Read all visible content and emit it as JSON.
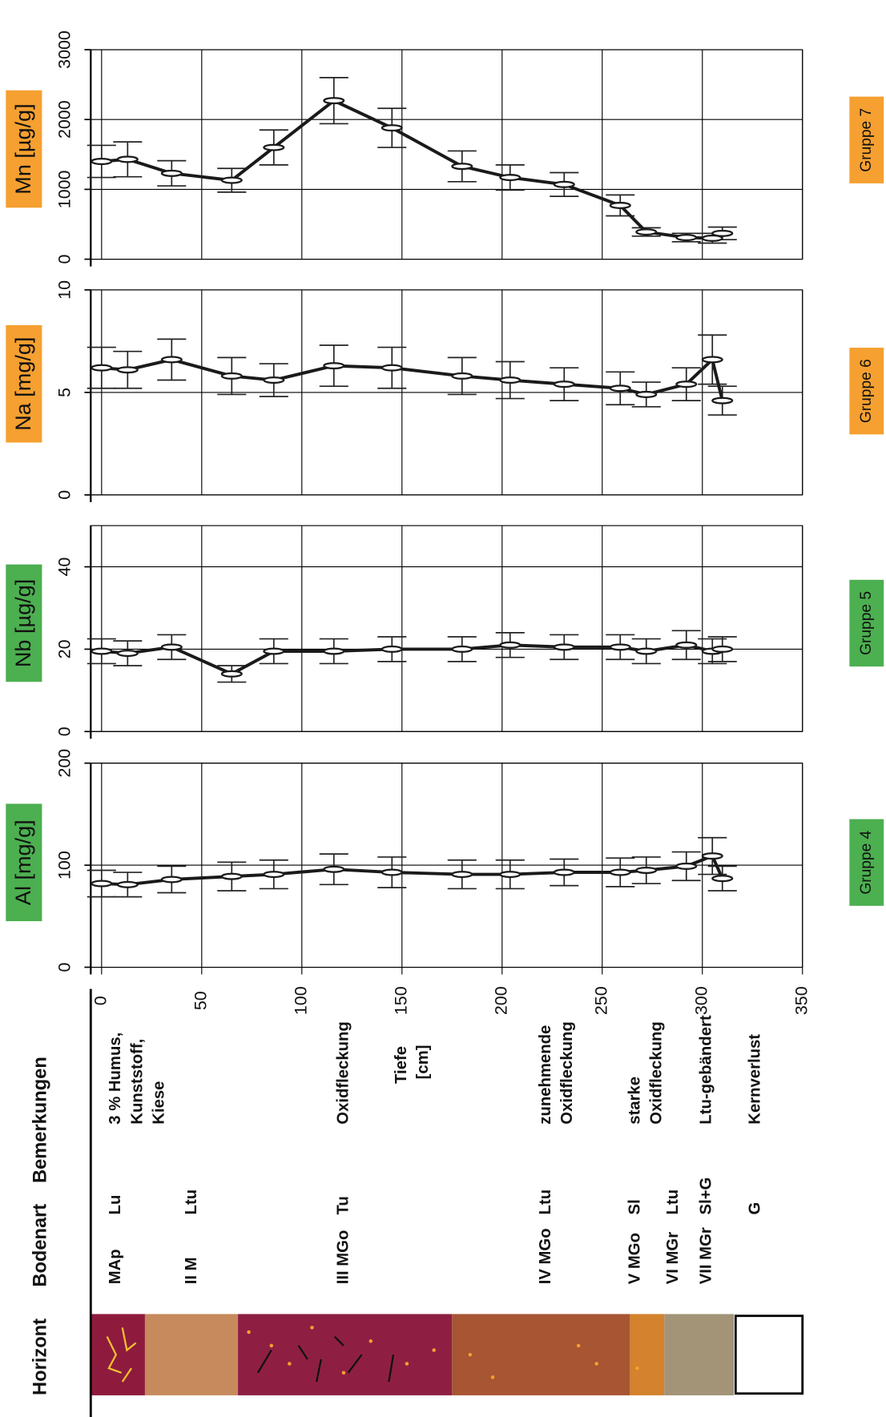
{
  "profile": {
    "headers": [
      "Horizont",
      "Bodenart",
      "Bemerkungen"
    ],
    "rows": [
      {
        "horizont": "MAp",
        "bodenart": "Lu",
        "bemerkungen": [
          "3 % Humus,",
          "Kunststoff,",
          "Kiese"
        ]
      },
      {
        "horizont": "II M",
        "bodenart": "Ltu"
      },
      {
        "horizont": "III MGo",
        "bodenart": "Tu",
        "bemerkungen": [
          "Oxidfleckung"
        ]
      },
      {
        "horizont": "IV MGo",
        "bodenart": "Ltu",
        "bemerkungen": [
          "zunehmende",
          "Oxidfleckung"
        ]
      },
      {
        "horizont": "V MGo",
        "bodenart": "Sl",
        "bemerkungen": [
          "starke",
          "Oxidfleckung"
        ]
      },
      {
        "horizont": "VI MGr",
        "bodenart": "Ltu"
      },
      {
        "horizont": "VII MGr",
        "bodenart": "Sl+G",
        "bemerkungen": [
          "Ltu-gebändert"
        ]
      },
      {
        "bodenart": "G",
        "bemerkungen": [
          "Kernverlust"
        ]
      }
    ]
  },
  "chart_data": [
    {
      "type": "line",
      "title": "Al [mg/g]",
      "title_color": "#4caf50",
      "group": "Gruppe 4",
      "group_color": "#4caf50",
      "xlabel": [
        "Tiefe",
        "[cm]"
      ],
      "xlim": [
        0,
        350
      ],
      "xticks": [
        0,
        50,
        100,
        150,
        200,
        250,
        300,
        350
      ],
      "ylim": [
        0,
        200
      ],
      "yticks": [
        0,
        100,
        200
      ],
      "grid": true,
      "x": [
        0,
        13,
        35,
        65,
        86,
        116,
        145,
        180,
        204,
        231,
        259,
        272,
        292,
        305,
        310
      ],
      "values": [
        82,
        81,
        86,
        89,
        91,
        96,
        93,
        91,
        91,
        93,
        93,
        95,
        99,
        109,
        87
      ],
      "errors": [
        13,
        12,
        13,
        14,
        14,
        15,
        15,
        14,
        14,
        13,
        14,
        13,
        14,
        18,
        12
      ],
      "color": "#1a1a1a"
    },
    {
      "type": "line",
      "title": "Nb [µg/g]",
      "title_color": "#4caf50",
      "group": "Gruppe 5",
      "group_color": "#4caf50",
      "xlim": [
        0,
        350
      ],
      "xticks": [
        0,
        50,
        100,
        150,
        200,
        250,
        300,
        350
      ],
      "ylim": [
        0,
        50
      ],
      "yticks": [
        0,
        20,
        40
      ],
      "grid": true,
      "x": [
        0,
        13,
        35,
        65,
        86,
        116,
        145,
        180,
        204,
        231,
        259,
        272,
        292,
        305,
        310
      ],
      "values": [
        19.5,
        19,
        20.5,
        14,
        19.5,
        19.5,
        20,
        20,
        21,
        20.5,
        20.5,
        19.5,
        21,
        19.5,
        20
      ],
      "errors": [
        3,
        3,
        3,
        2,
        3,
        3,
        3,
        3,
        3,
        3,
        3,
        3,
        3.5,
        3,
        3
      ],
      "color": "#1a1a1a"
    },
    {
      "type": "line",
      "title": "Na [mg/g]",
      "title_color": "#f5a030",
      "group": "Gruppe 6",
      "group_color": "#f5a030",
      "xlim": [
        0,
        350
      ],
      "xticks": [
        0,
        50,
        100,
        150,
        200,
        250,
        300,
        350
      ],
      "ylim": [
        0,
        10
      ],
      "yticks": [
        0,
        5,
        10
      ],
      "grid": true,
      "x": [
        0,
        13,
        35,
        65,
        86,
        116,
        145,
        180,
        204,
        231,
        259,
        272,
        292,
        305,
        310
      ],
      "values": [
        6.2,
        6.1,
        6.6,
        5.8,
        5.6,
        6.3,
        6.2,
        5.8,
        5.6,
        5.4,
        5.2,
        4.9,
        5.4,
        6.6,
        4.6
      ],
      "errors": [
        1,
        0.9,
        1,
        0.9,
        0.8,
        1,
        1,
        0.9,
        0.9,
        0.8,
        0.8,
        0.6,
        0.8,
        1.2,
        0.7
      ],
      "color": "#1a1a1a"
    },
    {
      "type": "line",
      "title": "Mn [µg/g]",
      "title_color": "#f5a030",
      "group": "Gruppe 7",
      "group_color": "#f5a030",
      "xlim": [
        0,
        350
      ],
      "xticks": [
        0,
        50,
        100,
        150,
        200,
        250,
        300,
        350
      ],
      "ylim": [
        0,
        3000
      ],
      "yticks": [
        0,
        1000,
        2000,
        3000
      ],
      "grid": true,
      "x": [
        0,
        13,
        35,
        65,
        86,
        116,
        145,
        180,
        204,
        231,
        259,
        272,
        292,
        305,
        310
      ],
      "values": [
        1400,
        1430,
        1230,
        1130,
        1600,
        2270,
        1880,
        1330,
        1170,
        1070,
        770,
        390,
        310,
        300,
        370
      ],
      "errors": [
        230,
        250,
        180,
        170,
        250,
        330,
        280,
        220,
        180,
        170,
        150,
        60,
        60,
        70,
        90
      ],
      "color": "#1a1a1a"
    }
  ]
}
